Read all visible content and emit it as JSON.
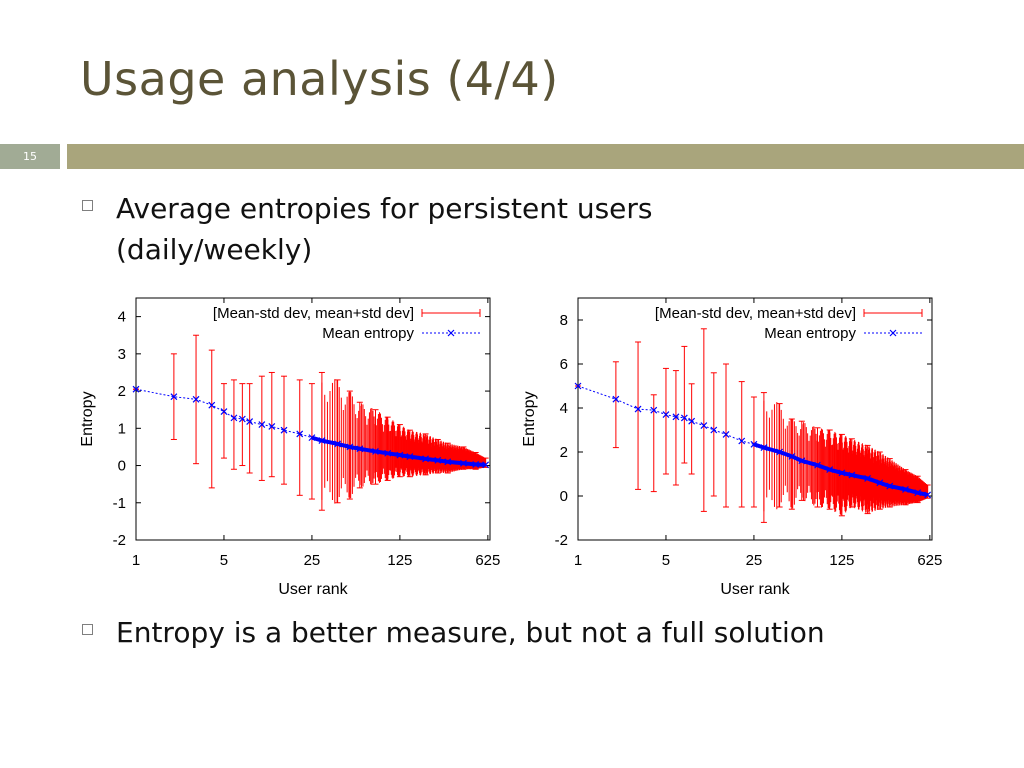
{
  "slide": {
    "title": "Usage analysis (4/4)",
    "number": "15"
  },
  "bullets": [
    "Average entropies for persistent users (daily/weekly)",
    "Entropy is a better measure, but not a full solution"
  ],
  "colors": {
    "title": "#5b5437",
    "bar": "#a9a57c",
    "number_box": "#a1ab95",
    "error_bars": "#ff0000",
    "mean_line": "#0000ff"
  },
  "chart_data": [
    {
      "type": "line",
      "x_scale": "log",
      "xlabel": "User rank",
      "ylabel": "Entropy",
      "xticks": [
        "1",
        "5",
        "25",
        "125",
        "625"
      ],
      "yticks": [
        "4",
        "3",
        "2",
        "1",
        "0",
        "-1",
        "-2"
      ],
      "xlim": [
        1,
        650
      ],
      "ylim": [
        -2,
        4.5
      ],
      "legend_position": "top-right",
      "series": [
        {
          "name": "[Mean-std dev, mean+std dev]",
          "kind": "errorbar",
          "color": "#ff0000"
        },
        {
          "name": "Mean entropy",
          "kind": "line",
          "color": "#0000ff"
        }
      ],
      "x": [
        1,
        2,
        3,
        4,
        5,
        6,
        7,
        8,
        10,
        12,
        15,
        20,
        25,
        30,
        40,
        50,
        60,
        80,
        100,
        125,
        150,
        200,
        250,
        300,
        400,
        500,
        600
      ],
      "mean": [
        2.05,
        1.85,
        1.78,
        1.62,
        1.45,
        1.28,
        1.25,
        1.18,
        1.1,
        1.05,
        0.95,
        0.85,
        0.75,
        0.67,
        0.58,
        0.5,
        0.45,
        0.38,
        0.33,
        0.28,
        0.24,
        0.18,
        0.14,
        0.1,
        0.06,
        0.03,
        0.02
      ],
      "lower": [
        2.05,
        0.7,
        0.05,
        -0.6,
        0.2,
        -0.1,
        0.0,
        -0.2,
        -0.4,
        -0.3,
        -0.5,
        -0.8,
        -0.9,
        -1.2,
        -1.0,
        -0.9,
        -0.6,
        -0.5,
        -0.4,
        -0.3,
        -0.3,
        -0.25,
        -0.2,
        -0.2,
        -0.1,
        -0.1,
        -0.05
      ],
      "upper": [
        2.05,
        3.0,
        3.5,
        3.1,
        2.2,
        2.3,
        2.2,
        2.2,
        2.4,
        2.5,
        2.4,
        2.3,
        2.2,
        2.5,
        2.3,
        2.0,
        1.7,
        1.5,
        1.3,
        1.1,
        0.95,
        0.85,
        0.7,
        0.6,
        0.5,
        0.35,
        0.2
      ]
    },
    {
      "type": "line",
      "x_scale": "log",
      "xlabel": "User rank",
      "ylabel": "Entropy",
      "xticks": [
        "1",
        "5",
        "25",
        "125",
        "625"
      ],
      "yticks": [
        "8",
        "6",
        "4",
        "2",
        "0",
        "-2"
      ],
      "xlim": [
        1,
        650
      ],
      "ylim": [
        -2,
        9
      ],
      "legend_position": "top-right",
      "series": [
        {
          "name": "[Mean-std dev, mean+std dev]",
          "kind": "errorbar",
          "color": "#ff0000"
        },
        {
          "name": "Mean entropy",
          "kind": "line",
          "color": "#0000ff"
        }
      ],
      "x": [
        1,
        2,
        3,
        4,
        5,
        6,
        7,
        8,
        10,
        12,
        15,
        20,
        25,
        30,
        40,
        50,
        60,
        80,
        100,
        125,
        150,
        200,
        250,
        300,
        400,
        500,
        600
      ],
      "mean": [
        5.0,
        4.4,
        3.95,
        3.9,
        3.7,
        3.6,
        3.55,
        3.4,
        3.2,
        3.0,
        2.8,
        2.5,
        2.35,
        2.2,
        2.0,
        1.8,
        1.6,
        1.4,
        1.2,
        1.05,
        0.95,
        0.8,
        0.6,
        0.45,
        0.3,
        0.15,
        0.05
      ],
      "lower": [
        5.0,
        2.2,
        0.3,
        0.2,
        1.0,
        0.5,
        1.5,
        1.0,
        -0.7,
        0.0,
        -0.5,
        -0.5,
        -0.5,
        -1.2,
        -0.5,
        -0.6,
        -0.2,
        -0.5,
        -0.6,
        -0.9,
        -0.5,
        -0.8,
        -0.6,
        -0.5,
        -0.4,
        -0.3,
        -0.1
      ],
      "upper": [
        5.0,
        6.1,
        7.0,
        4.6,
        5.8,
        5.7,
        6.8,
        5.1,
        7.6,
        5.6,
        6.0,
        5.2,
        4.5,
        4.7,
        4.2,
        3.5,
        3.4,
        3.1,
        3.0,
        2.8,
        2.6,
        2.3,
        2.0,
        1.7,
        1.2,
        0.9,
        0.5
      ]
    }
  ]
}
